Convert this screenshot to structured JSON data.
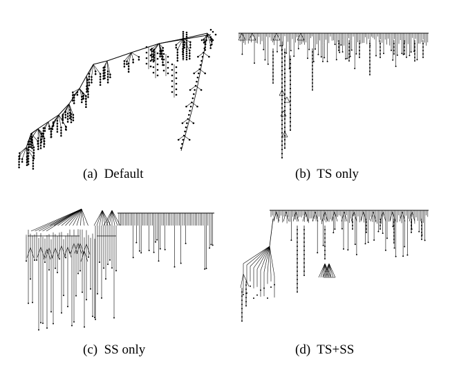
{
  "panels": [
    {
      "id": "a",
      "caption": "(a)  Default"
    },
    {
      "id": "b",
      "caption": "(b)  TS only"
    },
    {
      "id": "c",
      "caption": "(c)  SS only"
    },
    {
      "id": "d",
      "caption": "(d)  TS+SS"
    }
  ],
  "colors": {
    "tree_stroke": "#000000",
    "node_fill": "#000000",
    "background": "#ffffff"
  }
}
